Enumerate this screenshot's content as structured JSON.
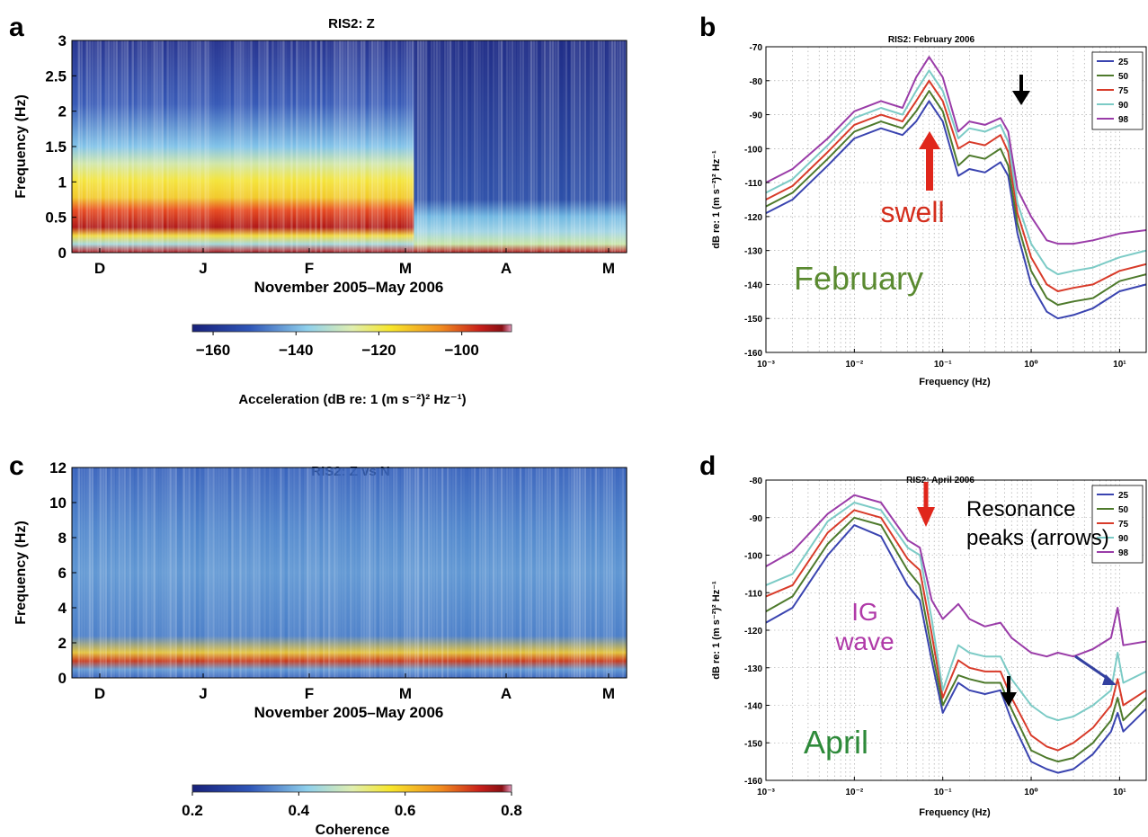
{
  "chart_data": [
    {
      "panel": "a",
      "type": "heatmap",
      "title": "RIS2:  Z",
      "ylabel": "Frequency  (Hz)",
      "xlabel": "November  2005–May  2006",
      "x_ticks": [
        "D",
        "J",
        "F",
        "M",
        "A",
        "M"
      ],
      "y_ticks": [
        "0",
        "0.5",
        "1",
        "1.5",
        "2",
        "2.5",
        "3"
      ],
      "ylim": [
        0,
        3
      ],
      "colorbar": {
        "label": "Acceleration (dB re: 1 (m s⁻²)² Hz⁻¹)",
        "ticks": [
          "−160",
          "−140",
          "−120",
          "−100"
        ],
        "range": [
          -165,
          -88
        ]
      }
    },
    {
      "panel": "b",
      "type": "line",
      "title": "RIS2:  February  2006",
      "xlabel": "Frequency  (Hz)",
      "ylabel": "dB re: 1 (m s⁻²)² Hz⁻¹",
      "xscale": "log",
      "xlim": [
        0.001,
        20
      ],
      "ylim": [
        -160,
        -70
      ],
      "y_ticks": [
        "-70",
        "-80",
        "-90",
        "-100",
        "-110",
        "-120",
        "-130",
        "-140",
        "-150",
        "-160"
      ],
      "x_ticks": [
        "10⁻³",
        "10⁻²",
        "10⁻¹",
        "10⁰",
        "10¹"
      ],
      "legend_position": "top-right",
      "x": [
        0.001,
        0.002,
        0.005,
        0.01,
        0.02,
        0.035,
        0.05,
        0.07,
        0.1,
        0.15,
        0.2,
        0.3,
        0.45,
        0.55,
        0.7,
        1,
        1.5,
        2,
        3,
        5,
        10,
        20
      ],
      "series": [
        {
          "name": "25",
          "color": "#3a44b0",
          "values": [
            -119,
            -115,
            -105,
            -97,
            -94,
            -96,
            -92,
            -86,
            -92,
            -108,
            -106,
            -107,
            -104,
            -108,
            -125,
            -140,
            -148,
            -150,
            -149,
            -147,
            -142,
            -140
          ]
        },
        {
          "name": "50",
          "color": "#4e7a2c",
          "values": [
            -117,
            -113,
            -103,
            -95,
            -92,
            -94,
            -89,
            -83,
            -89,
            -105,
            -102,
            -103,
            -100,
            -105,
            -122,
            -136,
            -144,
            -146,
            -145,
            -144,
            -139,
            -137
          ]
        },
        {
          "name": "75",
          "color": "#d83b2a",
          "values": [
            -115,
            -111,
            -101,
            -93,
            -90,
            -92,
            -86,
            -80,
            -86,
            -100,
            -98,
            -99,
            -96,
            -101,
            -119,
            -132,
            -140,
            -142,
            -141,
            -140,
            -136,
            -134
          ]
        },
        {
          "name": "90",
          "color": "#7ccbc6",
          "values": [
            -113,
            -109,
            -99,
            -91,
            -88,
            -90,
            -83,
            -77,
            -83,
            -97,
            -94,
            -95,
            -93,
            -98,
            -116,
            -128,
            -135,
            -137,
            -136,
            -135,
            -132,
            -130
          ]
        },
        {
          "name": "98",
          "color": "#9a3ca8",
          "values": [
            -110,
            -106,
            -97,
            -89,
            -86,
            -88,
            -79,
            -73,
            -79,
            -95,
            -92,
            -93,
            -91,
            -95,
            -112,
            -120,
            -127,
            -128,
            -128,
            -127,
            -125,
            -124
          ]
        }
      ],
      "annotations": [
        {
          "text": "swell",
          "color": "#d42e1d",
          "x": 0.07,
          "y": -111
        },
        {
          "text": "February",
          "color": "#5a8a30",
          "x": 0.025,
          "y": -147
        }
      ]
    },
    {
      "panel": "c",
      "type": "heatmap",
      "title": "RIS2:  Z  vs  N",
      "ylabel": "Frequency  (Hz)",
      "xlabel": "November  2005–May  2006",
      "x_ticks": [
        "D",
        "J",
        "F",
        "M",
        "A",
        "M"
      ],
      "y_ticks": [
        "0",
        "2",
        "4",
        "6",
        "8",
        "10",
        "12"
      ],
      "ylim": [
        0,
        12
      ],
      "colorbar": {
        "label": "Coherence",
        "ticks": [
          "0.2",
          "0.4",
          "0.6",
          "0.8"
        ],
        "range": [
          0.2,
          0.8
        ]
      }
    },
    {
      "panel": "d",
      "type": "line",
      "title": "RIS2:  April  2006",
      "xlabel": "Frequency  (Hz)",
      "ylabel": "dB re: 1 (m s⁻²)² Hz⁻¹",
      "xscale": "log",
      "xlim": [
        0.001,
        20
      ],
      "ylim": [
        -160,
        -80
      ],
      "y_ticks": [
        "-80",
        "-90",
        "-100",
        "-110",
        "-120",
        "-130",
        "-140",
        "-150",
        "-160"
      ],
      "x_ticks": [
        "10⁻³",
        "10⁻²",
        "10⁻¹",
        "10⁰",
        "10¹"
      ],
      "legend_position": "top-right",
      "x": [
        0.001,
        0.002,
        0.005,
        0.01,
        0.02,
        0.04,
        0.055,
        0.075,
        0.1,
        0.15,
        0.2,
        0.3,
        0.45,
        0.6,
        1,
        1.5,
        2,
        3,
        5,
        8,
        9.5,
        11,
        20
      ],
      "series": [
        {
          "name": "25",
          "color": "#3a44b0",
          "values": [
            -118,
            -114,
            -100,
            -92,
            -95,
            -108,
            -112,
            -128,
            -142,
            -134,
            -136,
            -137,
            -136,
            -144,
            -155,
            -157,
            -158,
            -157,
            -153,
            -147,
            -142,
            -147,
            -141
          ]
        },
        {
          "name": "50",
          "color": "#4e7a2c",
          "values": [
            -115,
            -111,
            -97,
            -90,
            -92,
            -104,
            -108,
            -125,
            -140,
            -132,
            -133,
            -134,
            -134,
            -141,
            -152,
            -154,
            -155,
            -154,
            -150,
            -144,
            -138,
            -144,
            -138
          ]
        },
        {
          "name": "75",
          "color": "#d83b2a",
          "values": [
            -111,
            -108,
            -94,
            -88,
            -90,
            -101,
            -104,
            -121,
            -138,
            -128,
            -130,
            -131,
            -131,
            -138,
            -148,
            -151,
            -152,
            -150,
            -146,
            -140,
            -133,
            -140,
            -136
          ]
        },
        {
          "name": "90",
          "color": "#7ccbc6",
          "values": [
            -108,
            -105,
            -91,
            -86,
            -88,
            -98,
            -100,
            -117,
            -136,
            -124,
            -126,
            -127,
            -127,
            -133,
            -140,
            -143,
            -144,
            -143,
            -140,
            -136,
            -126,
            -134,
            -131
          ]
        },
        {
          "name": "98",
          "color": "#9a3ca8",
          "values": [
            -103,
            -99,
            -89,
            -84,
            -86,
            -96,
            -98,
            -112,
            -117,
            -113,
            -117,
            -119,
            -118,
            -122,
            -126,
            -127,
            -126,
            -127,
            -125,
            -122,
            -114,
            -124,
            -123
          ]
        }
      ],
      "annotations": [
        {
          "text": "Resonance",
          "color": "#000000"
        },
        {
          "text": "peaks (arrows)",
          "color": "#000000"
        },
        {
          "text": "IG",
          "color": "#b03aa8"
        },
        {
          "text": "wave",
          "color": "#b03aa8"
        },
        {
          "text": "April",
          "color": "#2e8a3a"
        }
      ]
    }
  ],
  "panel_labels": [
    "a",
    "b",
    "c",
    "d"
  ],
  "colors": {
    "heat_low": "#1f2a8a",
    "heat_mid": "#8fd0ec",
    "heat_warm": "#f2e62a",
    "heat_high": "#b3141b",
    "arrow_red": "#e0261b",
    "arrow_black": "#000000",
    "arrow_blue": "#3340a0"
  }
}
